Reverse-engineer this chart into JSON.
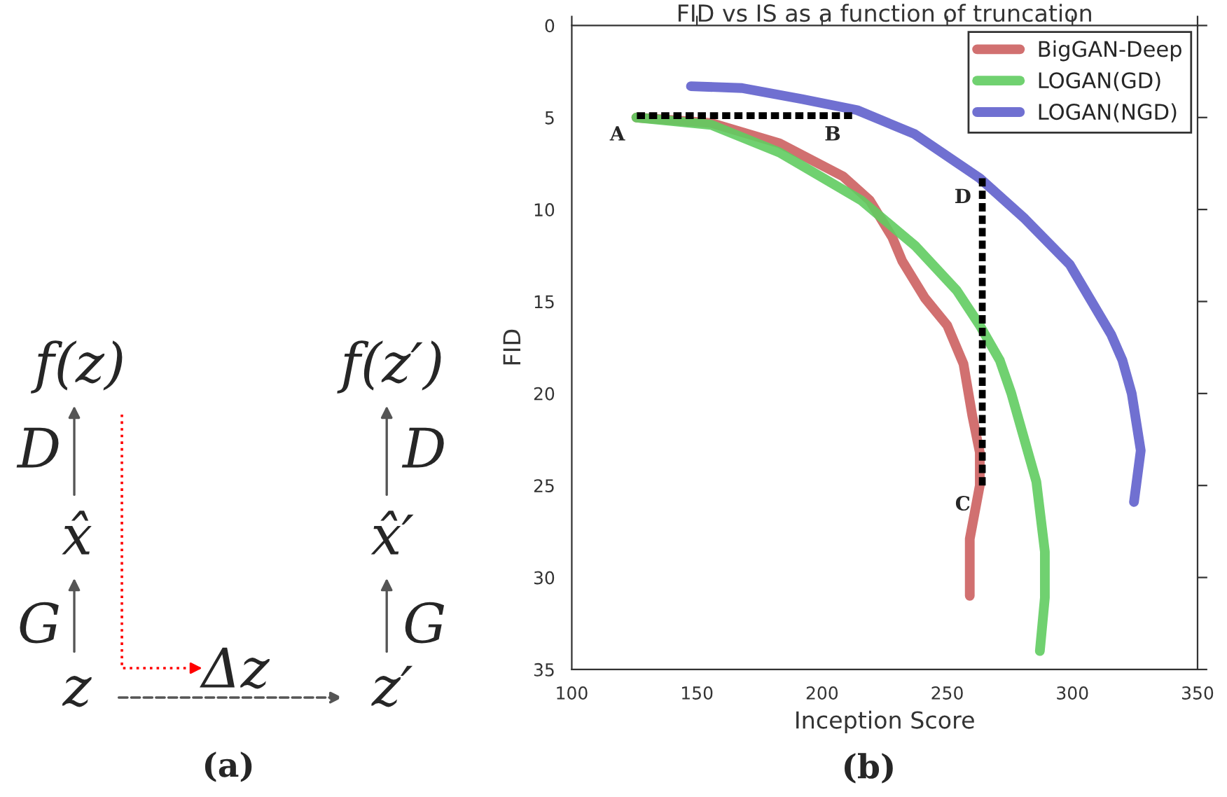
{
  "chart_data": [
    {
      "type": "other",
      "annotations": [
        "f(z)",
        "D",
        "x̂",
        "G",
        "z",
        "f(z′)",
        "D",
        "x̂′",
        "G",
        "z′",
        "Δz",
        "(a)"
      ]
    },
    {
      "type": "line",
      "title": "FID vs IS as a function of truncation",
      "xlabel": "Inception Score",
      "ylabel": "FID",
      "xlim": [
        100,
        350
      ],
      "xticks": [
        100,
        150,
        200,
        250,
        300,
        350
      ],
      "ylim": [
        35,
        0
      ],
      "yticks": [
        0,
        5,
        10,
        15,
        20,
        25,
        30,
        35
      ],
      "grid": false,
      "legend": "top right",
      "line_style": "solid",
      "marker": "none",
      "series": [
        {
          "name": "BigGAN-Deep",
          "color": "#cc6060",
          "x": [
            125.8,
            155.7,
            183,
            208.4,
            219,
            228,
            232,
            241,
            250,
            256.5,
            260,
            263,
            263,
            259,
            259
          ],
          "values": [
            5.0,
            5.3,
            6.4,
            8.2,
            9.5,
            11.5,
            12.8,
            14.8,
            16.3,
            18.4,
            21.2,
            23.2,
            25,
            27.9,
            31.0
          ]
        },
        {
          "name": "LOGAN(GD)",
          "color": "#60cc60",
          "x": [
            125.8,
            155.7,
            183,
            215.6,
            237.4,
            253.8,
            263,
            271,
            275.6,
            285.6,
            289,
            289,
            287
          ],
          "values": [
            5.0,
            5.4,
            6.9,
            9.5,
            12.0,
            14.4,
            16.3,
            18.2,
            20,
            24.8,
            28.6,
            31.1,
            34.0
          ]
        },
        {
          "name": "LOGAN(NGD)",
          "color": "#6060cc",
          "x": [
            147.6,
            168,
            192,
            214,
            237,
            263,
            281,
            299,
            315.5,
            320,
            323.7,
            327.3,
            324.6
          ],
          "values": [
            3.3,
            3.4,
            4.0,
            4.6,
            5.9,
            8.3,
            10.5,
            13.0,
            16.8,
            18.2,
            20,
            23.1,
            25.9
          ]
        },
        {
          "color": "#000000",
          "line_style": "dashed",
          "x": [
            126,
            212
          ],
          "values": [
            4.9,
            4.9
          ]
        },
        {
          "color": "#000000",
          "line_style": "dashed",
          "x": [
            264,
            264
          ],
          "values": [
            8.3,
            25
          ]
        }
      ],
      "annotations": [
        {
          "text": "A",
          "x": 126,
          "y": 4.9
        },
        {
          "text": "B",
          "x": 212,
          "y": 4.9
        },
        {
          "text": "D",
          "x": 264,
          "y": 8.3
        },
        {
          "text": "C",
          "x": 264,
          "y": 25
        },
        "(b)"
      ]
    }
  ]
}
